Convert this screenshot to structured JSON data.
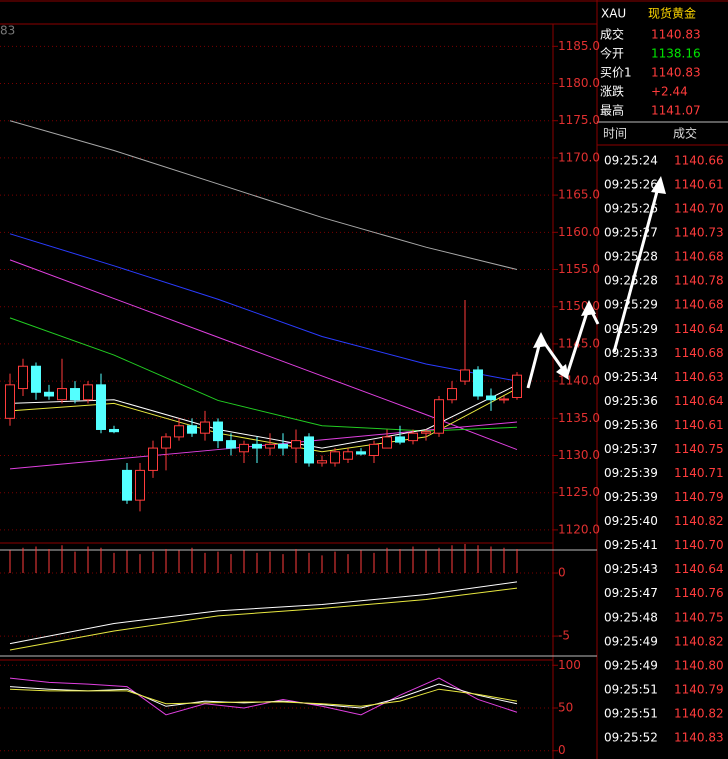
{
  "price_panel": {
    "header_fragment": "83",
    "ylim": [
      1117.3,
      1188
    ],
    "yticks": [
      {
        "value": 1185,
        "label": "1185.0"
      },
      {
        "value": 1180,
        "label": "1180.0"
      },
      {
        "value": 1175,
        "label": "1175.0"
      },
      {
        "value": 1170,
        "label": "1170.0"
      },
      {
        "value": 1165,
        "label": "1165.0"
      },
      {
        "value": 1160,
        "label": "1160.0"
      },
      {
        "value": 1155,
        "label": "1155.0"
      },
      {
        "value": 1150,
        "label": "1150.0"
      },
      {
        "value": 1145,
        "label": "1145.0"
      },
      {
        "value": 1140,
        "label": "1140.0"
      },
      {
        "value": 1135,
        "label": "1135.0"
      },
      {
        "value": 1130,
        "label": "1130.0"
      },
      {
        "value": 1125,
        "label": "1125.0"
      },
      {
        "value": 1120,
        "label": "1120.0"
      }
    ],
    "candles": {
      "open": [
        1135,
        1139,
        1142,
        1138.5,
        1137.5,
        1139,
        1137.5,
        1139.5,
        1133.5,
        1128,
        1124,
        1128,
        1131,
        1132.5,
        1134,
        1133,
        1134.5,
        1132,
        1130.5,
        1131.5,
        1131,
        1131.5,
        1131,
        1132.5,
        1129,
        1129,
        1129.5,
        1130.5,
        1130,
        1131,
        1132.5,
        1132,
        1133,
        1133,
        1137.5,
        1140,
        1141.5,
        1138,
        1137.5,
        1137.8
      ],
      "high": [
        1141,
        1143,
        1142.5,
        1139.5,
        1143,
        1140,
        1140,
        1141,
        1134,
        1129,
        1129,
        1132,
        1133,
        1135,
        1135,
        1136,
        1135,
        1133,
        1132,
        1132.5,
        1133,
        1133,
        1133.5,
        1133,
        1130,
        1131,
        1131,
        1131,
        1132,
        1133.5,
        1134,
        1133.5,
        1133.5,
        1138,
        1140,
        1150.9,
        1142,
        1139,
        1138,
        1141.2
      ],
      "low": [
        1134,
        1138,
        1137.5,
        1137.5,
        1137,
        1137,
        1137,
        1133,
        1133,
        1123.5,
        1122.5,
        1127,
        1128,
        1132,
        1132.5,
        1132,
        1131,
        1130,
        1129,
        1129,
        1130,
        1130,
        1129,
        1128.5,
        1128.5,
        1128.5,
        1129,
        1130,
        1129,
        1131,
        1131.5,
        1131.5,
        1132,
        1132.5,
        1137,
        1139.5,
        1137.5,
        1136,
        1137,
        1137.5
      ],
      "close": [
        1139.5,
        1142,
        1138.5,
        1138,
        1139,
        1137.5,
        1139.5,
        1133.5,
        1133.2,
        1124,
        1128,
        1131,
        1132.5,
        1134,
        1133,
        1134.5,
        1132,
        1131,
        1131.5,
        1131,
        1131.5,
        1131,
        1132,
        1129,
        1129.3,
        1130.5,
        1130.5,
        1130.2,
        1131.5,
        1132.5,
        1131.8,
        1133,
        1133.2,
        1137.5,
        1139,
        1141.5,
        1138,
        1137.5,
        1137.6,
        1140.8
      ]
    },
    "line_index": [
      0,
      8,
      16,
      24,
      32,
      39
    ],
    "lines": [
      {
        "color": "#a8a8a8",
        "values": [
          1175,
          1171,
          1166.5,
          1162,
          1158,
          1155
        ]
      },
      {
        "color": "#2a3cff",
        "values": [
          1159.8,
          1155.5,
          1151,
          1146,
          1142.3,
          1140
        ]
      },
      {
        "color": "#e040e0",
        "values": [
          1156.3,
          1151.1,
          1145.9,
          1140.7,
          1135.5,
          1130.8
        ]
      },
      {
        "color": "#e040e0",
        "values": [
          1128.2,
          1129.5,
          1130.8,
          1132.1,
          1133.4,
          1134.5
        ]
      },
      {
        "color": "#22cc22",
        "values": [
          1148.5,
          1143.5,
          1137.4,
          1134,
          1133.3,
          1133.8
        ]
      },
      {
        "color": "#e8e840",
        "values": [
          1136,
          1137,
          1133,
          1130.5,
          1132.5,
          1139
        ]
      },
      {
        "color": "#ffffff",
        "values": [
          1137,
          1137.5,
          1133.5,
          1131,
          1133.5,
          1139.5
        ]
      }
    ]
  },
  "macd_panel": {
    "ylim": [
      -6.5,
      2.38
    ],
    "yticks": [
      0,
      -5
    ],
    "bars": [
      1.8,
      2.0,
      2.1,
      1.9,
      2.2,
      1.7,
      2.1,
      2.0,
      1.6,
      1.8,
      1.5,
      1.7,
      1.9,
      1.8,
      2.0,
      1.6,
      1.7,
      1.5,
      1.8,
      1.6,
      1.7,
      1.5,
      1.9,
      1.6,
      1.4,
      1.7,
      1.5,
      1.8,
      1.6,
      2.0,
      1.9,
      2.1,
      1.8,
      2.0,
      2.2,
      2.3,
      2.2,
      2.1,
      2.0,
      1.9
    ],
    "line_index": [
      0,
      8,
      16,
      24,
      32,
      39
    ],
    "lines": [
      {
        "color": "#ffffff",
        "values": [
          -5.6,
          -4.0,
          -3.0,
          -2.5,
          -1.7,
          -0.7
        ]
      },
      {
        "color": "#e8e840",
        "values": [
          -6.1,
          -4.6,
          -3.4,
          -2.8,
          -2.1,
          -1.2
        ]
      }
    ]
  },
  "osc_panel": {
    "ylim": [
      -5,
      105
    ],
    "yticks": [
      100,
      50,
      0
    ],
    "line_index": [
      0,
      3,
      6,
      9,
      12,
      15,
      18,
      21,
      24,
      27,
      30,
      33,
      36,
      39
    ],
    "lines": [
      {
        "color": "#e040e0",
        "values": [
          85,
          80,
          78,
          75,
          42,
          55,
          50,
          60,
          52,
          42,
          65,
          85,
          60,
          45
        ]
      },
      {
        "color": "#ffffff",
        "values": [
          75,
          72,
          70,
          72,
          52,
          58,
          56,
          58,
          54,
          50,
          62,
          78,
          65,
          55
        ]
      },
      {
        "color": "#e8e840",
        "values": [
          72,
          70,
          70,
          70,
          55,
          56,
          57,
          57,
          55,
          52,
          58,
          72,
          66,
          58
        ]
      }
    ]
  },
  "quote": {
    "symbol": "XAU",
    "name": "现货黄金",
    "rows": [
      {
        "label": "成交",
        "value": "1140.83",
        "color": "#ff3c3c"
      },
      {
        "label": "今开",
        "value": "1138.16",
        "color": "#00e600"
      },
      {
        "label": "买价1",
        "value": "1140.83",
        "color": "#ff3c3c"
      },
      {
        "label": "涨跌",
        "value": "+2.44",
        "color": "#ff3c3c"
      },
      {
        "label": "最高",
        "value": "1141.07",
        "color": "#ff3c3c"
      }
    ]
  },
  "trades": {
    "header": [
      "时间",
      "成交"
    ],
    "rows": [
      [
        "09:25:24",
        "1140.66"
      ],
      [
        "09:25:26",
        "1140.61"
      ],
      [
        "09:25:26",
        "1140.70"
      ],
      [
        "09:25:27",
        "1140.73"
      ],
      [
        "09:25:28",
        "1140.68"
      ],
      [
        "09:25:28",
        "1140.78"
      ],
      [
        "09:25:29",
        "1140.68"
      ],
      [
        "09:25:29",
        "1140.64"
      ],
      [
        "09:25:33",
        "1140.68"
      ],
      [
        "09:25:34",
        "1140.63"
      ],
      [
        "09:25:36",
        "1140.64"
      ],
      [
        "09:25:36",
        "1140.61"
      ],
      [
        "09:25:37",
        "1140.75"
      ],
      [
        "09:25:39",
        "1140.71"
      ],
      [
        "09:25:39",
        "1140.79"
      ],
      [
        "09:25:40",
        "1140.82"
      ],
      [
        "09:25:41",
        "1140.70"
      ],
      [
        "09:25:43",
        "1140.64"
      ],
      [
        "09:25:47",
        "1140.76"
      ],
      [
        "09:25:48",
        "1140.75"
      ],
      [
        "09:25:49",
        "1140.82"
      ],
      [
        "09:25:49",
        "1140.80"
      ],
      [
        "09:25:51",
        "1140.79"
      ],
      [
        "09:25:51",
        "1140.82"
      ],
      [
        "09:25:52",
        "1140.83"
      ]
    ]
  }
}
